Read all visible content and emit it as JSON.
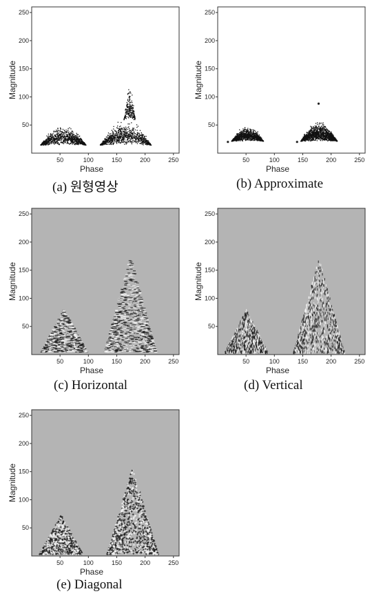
{
  "chart_data": [
    {
      "id": "a",
      "type": "scatter",
      "caption": "(a) 원형영상",
      "xlabel": "Phase",
      "ylabel": "Magnitude",
      "xlim": [
        0,
        260
      ],
      "ylim": [
        0,
        260
      ],
      "xticks": [
        50,
        100,
        150,
        200,
        250
      ],
      "yticks": [
        50,
        100,
        150,
        200,
        250
      ],
      "xtick_labels": [
        "50",
        "100",
        "150",
        "200",
        "250"
      ],
      "ytick_labels": [
        "50",
        "100",
        "150",
        "200",
        "250"
      ],
      "render": "points",
      "clusters": [
        {
          "x_center": 55,
          "x_halfwidth": 40,
          "y_base": 15,
          "peak": 52,
          "density": 1.0
        },
        {
          "x_center": 165,
          "x_halfwidth": 45,
          "y_base": 15,
          "peak": 60,
          "density": 1.0
        },
        {
          "x_center": 172,
          "x_halfwidth": 10,
          "y_base": 60,
          "peak": 123,
          "density": 0.25
        }
      ],
      "background": "#ffffff"
    },
    {
      "id": "b",
      "type": "scatter",
      "caption": "(b) Approximate",
      "xlabel": "Phase",
      "ylabel": "Magnitude",
      "xlim": [
        0,
        260
      ],
      "ylim": [
        0,
        260
      ],
      "xticks": [
        50,
        100,
        150,
        200,
        250
      ],
      "yticks": [
        50,
        100,
        150,
        200,
        250
      ],
      "xtick_labels": [
        "50",
        "100",
        "150",
        "200",
        "250"
      ],
      "ytick_labels": [
        "50",
        "100",
        "150",
        "200",
        "250"
      ],
      "render": "points",
      "clusters": [
        {
          "x_center": 52,
          "x_halfwidth": 28,
          "y_base": 22,
          "peak": 50,
          "density": 1.2
        },
        {
          "x_center": 178,
          "x_halfwidth": 32,
          "y_base": 22,
          "peak": 58,
          "density": 1.6
        }
      ],
      "outliers": [
        [
          18,
          20
        ],
        [
          140,
          20
        ],
        [
          178,
          88
        ]
      ],
      "background": "#ffffff"
    },
    {
      "id": "c",
      "type": "heatmap",
      "caption": "(c) Horizontal",
      "xlabel": "Phase",
      "ylabel": "Magnitude",
      "xlim": [
        0,
        260
      ],
      "ylim": [
        0,
        260
      ],
      "xticks": [
        50,
        100,
        150,
        200,
        250
      ],
      "yticks": [
        50,
        100,
        150,
        200,
        250
      ],
      "xtick_labels": [
        "50",
        "100",
        "150",
        "200",
        "250"
      ],
      "ytick_labels": [
        "50",
        "100",
        "150",
        "200",
        "250"
      ],
      "render": "coef-horizontal",
      "regions": [
        {
          "x_center": 55,
          "x_halfwidth": 40,
          "peak": 82
        },
        {
          "x_center": 172,
          "x_halfwidth": 45,
          "peak": 175
        }
      ],
      "background": "#b4b4b4"
    },
    {
      "id": "d",
      "type": "heatmap",
      "caption": "(d) Vertical",
      "xlabel": "Phase",
      "ylabel": "Magnitude",
      "xlim": [
        0,
        260
      ],
      "ylim": [
        0,
        260
      ],
      "xticks": [
        50,
        100,
        150,
        200,
        250
      ],
      "yticks": [
        50,
        100,
        150,
        200,
        250
      ],
      "xtick_labels": [
        "50",
        "100",
        "150",
        "200",
        "250"
      ],
      "ytick_labels": [
        "50",
        "100",
        "150",
        "200",
        "250"
      ],
      "render": "coef-vertical",
      "regions": [
        {
          "x_center": 50,
          "x_halfwidth": 38,
          "peak": 82
        },
        {
          "x_center": 178,
          "x_halfwidth": 45,
          "peak": 175
        }
      ],
      "background": "#b4b4b4"
    },
    {
      "id": "e",
      "type": "heatmap",
      "caption": "(e) Diagonal",
      "xlabel": "Phase",
      "ylabel": "Magnitude",
      "xlim": [
        0,
        260
      ],
      "ylim": [
        0,
        260
      ],
      "xticks": [
        50,
        100,
        150,
        200,
        250
      ],
      "yticks": [
        50,
        100,
        150,
        200,
        250
      ],
      "xtick_labels": [
        "50",
        "100",
        "150",
        "200",
        "250"
      ],
      "ytick_labels": [
        "50",
        "100",
        "150",
        "200",
        "250"
      ],
      "render": "coef-diagonal",
      "regions": [
        {
          "x_center": 52,
          "x_halfwidth": 38,
          "peak": 75
        },
        {
          "x_center": 178,
          "x_halfwidth": 45,
          "peak": 160
        }
      ],
      "background": "#b4b4b4"
    }
  ]
}
